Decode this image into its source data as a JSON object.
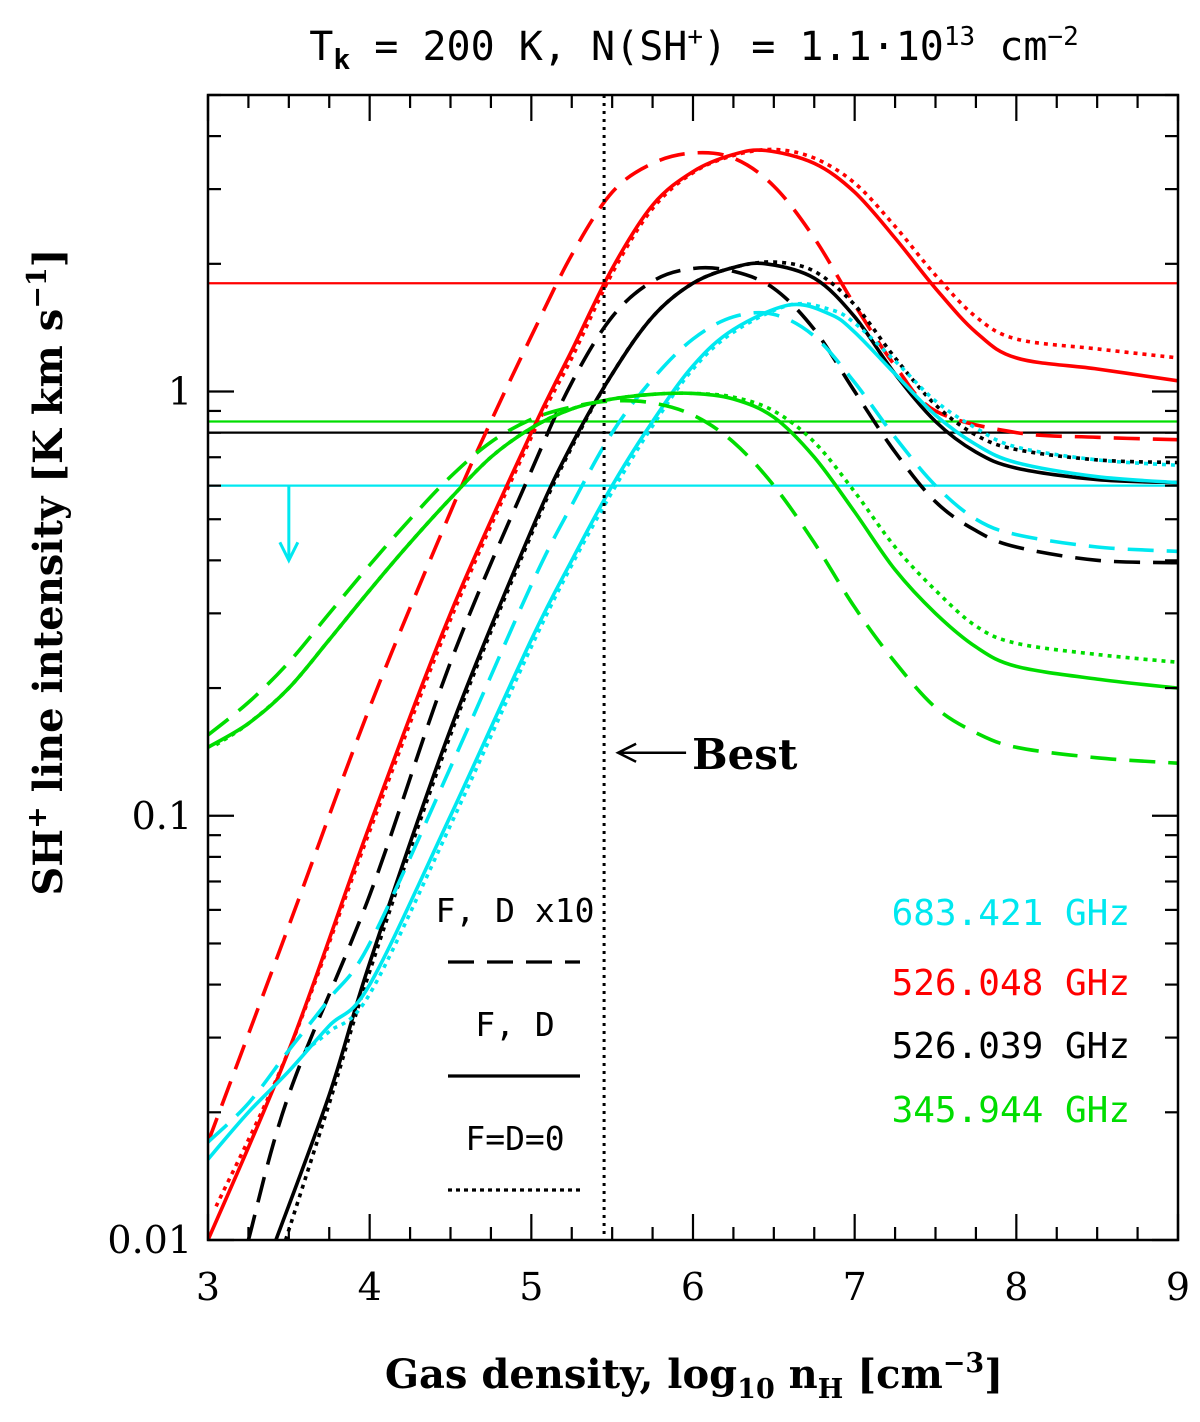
{
  "chart_data": {
    "type": "line",
    "title": {
      "prefix": "T",
      "prefix_sub": "k",
      "middle": " = 200 K, N(SH",
      "middle_sup": "+",
      "after": ") = 1.1·10",
      "after_sup": "13",
      "unit": " cm",
      "unit_sup": "−2"
    },
    "xlabel": {
      "text": "Gas density, log",
      "sub": "10",
      "n": " n",
      "n_sub": "H",
      "unit": "  [cm",
      "unit_sup": "−3",
      "close": "]"
    },
    "ylabel": {
      "text": "SH",
      "sup": "+",
      "rest": " line intensity  [K km s",
      "rest_sup": "−1",
      "close": "]"
    },
    "x_range": [
      3,
      9
    ],
    "y_range": [
      0.01,
      5.0
    ],
    "y_scale": "log",
    "x_ticks": [
      "3",
      "4",
      "5",
      "6",
      "7",
      "8",
      "9"
    ],
    "y_ticks": [
      {
        "value": 0.01,
        "label": "0.01"
      },
      {
        "value": 0.1,
        "label": "0.1"
      },
      {
        "value": 1,
        "label": "1"
      }
    ],
    "best_fit_x": 5.45,
    "best_label": "Best",
    "upper_limit_marker": {
      "x": 3.5,
      "y_start": 0.6,
      "y_end": 0.4,
      "color": "#00e8f0"
    },
    "line_styles": {
      "F, D x10": "dashed",
      "F, D": "solid",
      "F=D=0": "dotted"
    },
    "style_legend": [
      {
        "label": "F, D x10",
        "style": "dashed"
      },
      {
        "label": "F, D",
        "style": "solid"
      },
      {
        "label": "F=D=0",
        "style": "dotted"
      }
    ],
    "color_legend": [
      {
        "label": "683.421 GHz",
        "color": "#00e8f0"
      },
      {
        "label": "526.048 GHz",
        "color": "#ff0000"
      },
      {
        "label": "526.039 GHz",
        "color": "#000000"
      },
      {
        "label": "345.944 GHz",
        "color": "#00dd00"
      }
    ],
    "observed_levels": [
      {
        "line": "526.048 GHz",
        "color": "#ff0000",
        "value": 1.8
      },
      {
        "line": "345.944 GHz",
        "color": "#00dd00",
        "value": 0.85
      },
      {
        "line": "526.039 GHz",
        "color": "#000000",
        "value": 0.8
      },
      {
        "line": "683.421 GHz",
        "color": "#00e8f0",
        "value": 0.6
      }
    ],
    "series": [
      {
        "name": "526.048 GHz F, D",
        "color": "#ff0000",
        "style": "solid",
        "x": [
          3.0,
          3.5,
          4.0,
          4.5,
          5.0,
          5.25,
          5.5,
          5.75,
          6.0,
          6.25,
          6.45,
          6.75,
          7.0,
          7.25,
          7.5,
          7.75,
          8.0,
          8.5,
          9.0
        ],
        "y": [
          0.01,
          0.028,
          0.095,
          0.3,
          0.8,
          1.25,
          1.95,
          2.75,
          3.3,
          3.62,
          3.7,
          3.45,
          2.95,
          2.3,
          1.75,
          1.38,
          1.2,
          1.13,
          1.06
        ]
      },
      {
        "name": "526.048 GHz F=D=0",
        "color": "#ff0000",
        "style": "dotted",
        "x": [
          3.05,
          3.5,
          4.0,
          4.5,
          5.0,
          5.25,
          5.5,
          5.75,
          6.0,
          6.25,
          6.5,
          6.75,
          7.0,
          7.25,
          7.5,
          7.75,
          8.0,
          8.5,
          9.0
        ],
        "y": [
          0.012,
          0.028,
          0.092,
          0.29,
          0.78,
          1.2,
          1.9,
          2.7,
          3.28,
          3.6,
          3.72,
          3.55,
          3.1,
          2.45,
          1.88,
          1.5,
          1.33,
          1.26,
          1.2
        ]
      },
      {
        "name": "526.048 GHz F, D x10",
        "color": "#ff0000",
        "style": "dashed",
        "x": [
          3.0,
          3.5,
          4.0,
          4.5,
          4.75,
          5.0,
          5.25,
          5.5,
          5.75,
          6.0,
          6.25,
          6.5,
          6.75,
          7.0,
          7.25,
          7.5,
          8.0,
          8.5,
          9.0
        ],
        "y": [
          0.017,
          0.055,
          0.18,
          0.52,
          0.85,
          1.35,
          2.1,
          2.95,
          3.45,
          3.65,
          3.55,
          3.05,
          2.3,
          1.6,
          1.15,
          0.9,
          0.8,
          0.78,
          0.77
        ]
      },
      {
        "name": "526.039 GHz F, D",
        "color": "#000000",
        "style": "solid",
        "x": [
          3.42,
          3.75,
          4.0,
          4.5,
          5.0,
          5.25,
          5.5,
          5.75,
          6.0,
          6.25,
          6.45,
          6.75,
          7.0,
          7.25,
          7.5,
          7.75,
          8.0,
          8.5,
          9.0
        ],
        "y": [
          0.01,
          0.022,
          0.045,
          0.16,
          0.47,
          0.75,
          1.1,
          1.5,
          1.8,
          1.96,
          2.0,
          1.85,
          1.5,
          1.1,
          0.85,
          0.72,
          0.66,
          0.62,
          0.61
        ]
      },
      {
        "name": "526.039 GHz F=D=0",
        "color": "#000000",
        "style": "dotted",
        "x": [
          3.48,
          3.75,
          4.0,
          4.5,
          5.0,
          5.25,
          5.5,
          5.75,
          6.0,
          6.25,
          6.5,
          6.75,
          7.0,
          7.25,
          7.5,
          7.75,
          8.0,
          8.5,
          9.0
        ],
        "y": [
          0.01,
          0.021,
          0.043,
          0.155,
          0.46,
          0.74,
          1.1,
          1.5,
          1.8,
          1.96,
          2.02,
          1.92,
          1.6,
          1.2,
          0.93,
          0.79,
          0.73,
          0.69,
          0.68
        ]
      },
      {
        "name": "526.039 GHz F, D x10",
        "color": "#000000",
        "style": "dashed",
        "x": [
          3.25,
          3.5,
          4.0,
          4.5,
          5.0,
          5.25,
          5.5,
          5.75,
          6.0,
          6.25,
          6.5,
          6.75,
          7.0,
          7.25,
          7.5,
          7.75,
          8.0,
          8.5,
          9.0
        ],
        "y": [
          0.01,
          0.022,
          0.065,
          0.23,
          0.65,
          1.05,
          1.5,
          1.82,
          1.95,
          1.92,
          1.75,
          1.4,
          1.0,
          0.72,
          0.55,
          0.47,
          0.43,
          0.4,
          0.395
        ]
      },
      {
        "name": "683.421 GHz F, D",
        "color": "#00e8f0",
        "style": "solid",
        "x": [
          3.0,
          3.25,
          3.5,
          3.75,
          4.0,
          4.5,
          5.0,
          5.25,
          5.5,
          5.75,
          6.0,
          6.25,
          6.6,
          6.85,
          7.0,
          7.25,
          7.5,
          7.75,
          8.0,
          8.5,
          9.0
        ],
        "y": [
          0.0155,
          0.02,
          0.025,
          0.032,
          0.04,
          0.1,
          0.26,
          0.4,
          0.6,
          0.85,
          1.15,
          1.4,
          1.6,
          1.52,
          1.38,
          1.1,
          0.88,
          0.75,
          0.68,
          0.63,
          0.61
        ]
      },
      {
        "name": "683.421 GHz F=D=0",
        "color": "#00e8f0",
        "style": "dotted",
        "x": [
          3.6,
          3.75,
          4.0,
          4.5,
          5.0,
          5.25,
          5.5,
          5.75,
          6.0,
          6.25,
          6.6,
          6.85,
          7.0,
          7.25,
          7.5,
          7.75,
          8.0,
          8.5,
          9.0
        ],
        "y": [
          0.028,
          0.031,
          0.038,
          0.095,
          0.25,
          0.39,
          0.58,
          0.83,
          1.13,
          1.38,
          1.6,
          1.56,
          1.45,
          1.18,
          0.95,
          0.82,
          0.74,
          0.69,
          0.67
        ]
      },
      {
        "name": "683.421 GHz F, D x10",
        "color": "#00e8f0",
        "style": "dashed",
        "x": [
          3.0,
          3.25,
          3.5,
          3.75,
          4.0,
          4.5,
          5.0,
          5.25,
          5.5,
          5.75,
          6.0,
          6.25,
          6.5,
          6.75,
          7.0,
          7.25,
          7.5,
          7.75,
          8.0,
          8.5,
          9.0
        ],
        "y": [
          0.017,
          0.021,
          0.028,
          0.037,
          0.05,
          0.13,
          0.35,
          0.54,
          0.8,
          1.07,
          1.33,
          1.5,
          1.52,
          1.35,
          1.05,
          0.78,
          0.6,
          0.5,
          0.46,
          0.43,
          0.42
        ]
      },
      {
        "name": "345.944 GHz F, D",
        "color": "#00dd00",
        "style": "solid",
        "x": [
          3.0,
          3.25,
          3.5,
          3.75,
          4.0,
          4.25,
          4.5,
          4.75,
          5.0,
          5.25,
          5.5,
          5.75,
          6.0,
          6.25,
          6.5,
          6.75,
          7.0,
          7.25,
          7.5,
          7.75,
          8.0,
          8.5,
          9.0
        ],
        "y": [
          0.145,
          0.165,
          0.2,
          0.26,
          0.34,
          0.44,
          0.56,
          0.7,
          0.82,
          0.91,
          0.96,
          0.985,
          0.99,
          0.96,
          0.87,
          0.7,
          0.52,
          0.38,
          0.3,
          0.25,
          0.225,
          0.21,
          0.2
        ]
      },
      {
        "name": "345.944 GHz F=D=0",
        "color": "#00dd00",
        "style": "dotted",
        "x": [
          3.05,
          3.25,
          3.5,
          3.75,
          4.0,
          4.25,
          4.5,
          4.75,
          5.0,
          5.25,
          5.5,
          5.75,
          6.0,
          6.25,
          6.5,
          6.75,
          7.0,
          7.25,
          7.5,
          7.75,
          8.0,
          8.5,
          9.0
        ],
        "y": [
          0.147,
          0.165,
          0.2,
          0.26,
          0.34,
          0.44,
          0.56,
          0.7,
          0.82,
          0.91,
          0.96,
          0.985,
          0.99,
          0.97,
          0.9,
          0.76,
          0.58,
          0.43,
          0.34,
          0.28,
          0.255,
          0.24,
          0.23
        ]
      },
      {
        "name": "345.944 GHz F, D x10",
        "color": "#00dd00",
        "style": "dashed",
        "x": [
          3.0,
          3.25,
          3.5,
          3.75,
          4.0,
          4.25,
          4.5,
          4.75,
          5.0,
          5.25,
          5.5,
          5.75,
          6.0,
          6.25,
          6.5,
          6.75,
          7.0,
          7.25,
          7.5,
          7.75,
          8.0,
          8.5,
          9.0
        ],
        "y": [
          0.155,
          0.185,
          0.23,
          0.3,
          0.39,
          0.5,
          0.63,
          0.76,
          0.86,
          0.92,
          0.95,
          0.94,
          0.88,
          0.76,
          0.6,
          0.44,
          0.31,
          0.23,
          0.18,
          0.157,
          0.145,
          0.137,
          0.133
        ]
      }
    ]
  }
}
